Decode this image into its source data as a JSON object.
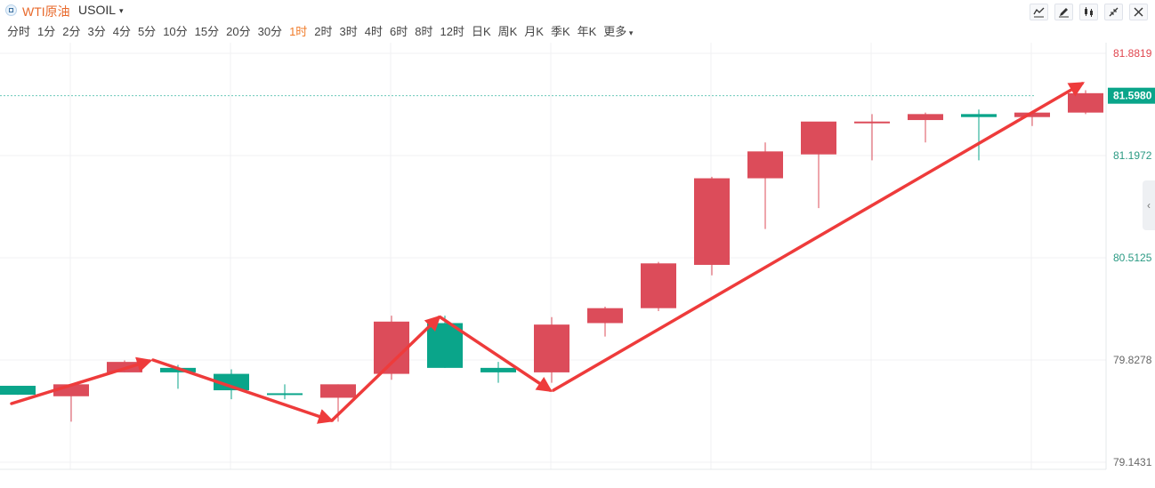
{
  "header": {
    "symbol_name": "WTI原油",
    "symbol_code": "USOIL",
    "caret": "▾"
  },
  "toolbar": {
    "icons": [
      "line-chart-icon",
      "draw-pen-icon",
      "candlestick-settings-icon",
      "collapse-icon",
      "close-icon"
    ]
  },
  "periods": {
    "items": [
      "分时",
      "1分",
      "2分",
      "3分",
      "4分",
      "5分",
      "10分",
      "15分",
      "20分",
      "30分",
      "1时",
      "2时",
      "3时",
      "4时",
      "6时",
      "8时",
      "12时",
      "日K",
      "周K",
      "月K",
      "季K",
      "年K",
      "更多"
    ],
    "active": "1时"
  },
  "colors": {
    "up": "#dc4c5a",
    "down": "#0aa58a",
    "arrow": "#ee3b3b",
    "current_price": "#0aa58a",
    "max_price_label": "#e0464f"
  },
  "chart_data": {
    "type": "candlestick",
    "y_axis_labels": [
      "81.8819",
      "81.1972",
      "80.5125",
      "79.8278",
      "79.1431"
    ],
    "y_axis_values": [
      81.8819,
      81.1972,
      80.5125,
      79.8278,
      79.1431
    ],
    "current_price": "81.5980",
    "candles": [
      {
        "o": 79.655,
        "h": 79.655,
        "l": 79.595,
        "c": 79.595
      },
      {
        "o": 79.585,
        "h": 79.665,
        "l": 79.415,
        "c": 79.665
      },
      {
        "o": 79.745,
        "h": 79.825,
        "l": 79.745,
        "c": 79.815
      },
      {
        "o": 79.775,
        "h": 79.795,
        "l": 79.635,
        "c": 79.745
      },
      {
        "o": 79.735,
        "h": 79.765,
        "l": 79.565,
        "c": 79.625
      },
      {
        "o": 79.605,
        "h": 79.665,
        "l": 79.565,
        "c": 79.595
      },
      {
        "o": 79.575,
        "h": 79.665,
        "l": 79.415,
        "c": 79.665
      },
      {
        "o": 79.735,
        "h": 80.125,
        "l": 79.695,
        "c": 80.085
      },
      {
        "o": 80.075,
        "h": 80.125,
        "l": 79.775,
        "c": 79.775
      },
      {
        "o": 79.775,
        "h": 79.815,
        "l": 79.675,
        "c": 79.745
      },
      {
        "o": 79.745,
        "h": 80.115,
        "l": 79.675,
        "c": 80.065
      },
      {
        "o": 80.075,
        "h": 80.185,
        "l": 79.985,
        "c": 80.175
      },
      {
        "o": 80.175,
        "h": 80.485,
        "l": 80.155,
        "c": 80.475
      },
      {
        "o": 80.465,
        "h": 81.055,
        "l": 80.395,
        "c": 81.045
      },
      {
        "o": 81.045,
        "h": 81.285,
        "l": 80.705,
        "c": 81.225
      },
      {
        "o": 81.205,
        "h": 81.415,
        "l": 80.845,
        "c": 81.425
      },
      {
        "o": 81.425,
        "h": 81.475,
        "l": 81.165,
        "c": 81.425
      },
      {
        "o": 81.435,
        "h": 81.485,
        "l": 81.285,
        "c": 81.475
      },
      {
        "o": 81.475,
        "h": 81.505,
        "l": 81.165,
        "c": 81.455
      },
      {
        "o": 81.455,
        "h": 81.495,
        "l": 81.395,
        "c": 81.485
      },
      {
        "o": 81.485,
        "h": 81.635,
        "l": 81.475,
        "c": 81.615
      }
    ]
  }
}
